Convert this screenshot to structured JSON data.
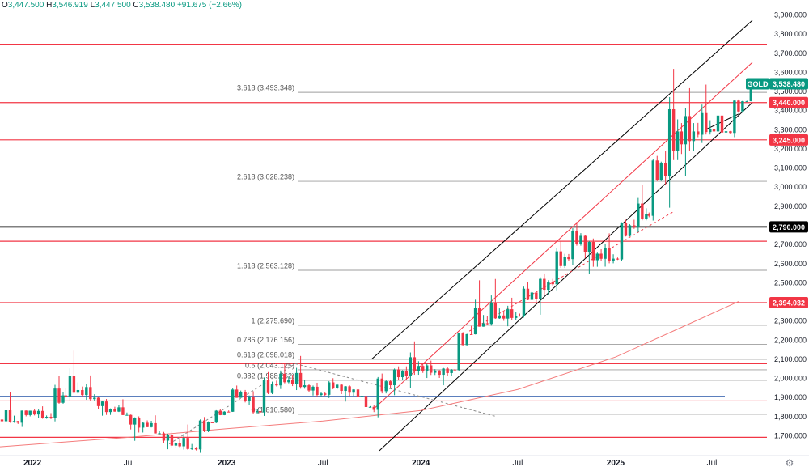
{
  "header": {
    "o_label": "O",
    "open": "3,447.500",
    "h_label": "H",
    "high": "3,546.919",
    "l_label": "L",
    "low": "3,447.500",
    "c_label": "C",
    "close": "3,538.480",
    "change": "+91.675 (+2.66%)"
  },
  "colors": {
    "up": "#089981",
    "down": "#f23645",
    "level": "#f23645",
    "fib": "#9e9e9e",
    "axis_text": "#131722",
    "black_level": "#000000",
    "blue_level": "#5b7fbd",
    "ma": "#f47c7c"
  },
  "icons": {
    "settings": "gear-icon"
  },
  "chart_data": {
    "type": "candlestick",
    "symbol": "GOLD",
    "last_price": "3,538.480",
    "ylim": [
      1650,
      3925
    ],
    "xlim": [
      "2021-11-01",
      "2025-09-15"
    ],
    "y_ticks": [
      "1,700.000",
      "1,800.000",
      "1,900.000",
      "2,000.000",
      "2,100.000",
      "2,200.000",
      "2,300.000",
      "2,400.000",
      "2,500.000",
      "2,600.000",
      "2,700.000",
      "2,800.000",
      "2,900.000",
      "3,000.000",
      "3,100.000",
      "3,200.000",
      "3,300.000",
      "3,400.000",
      "3,500.000",
      "3,600.000",
      "3,700.000",
      "3,800.000",
      "3,900.000"
    ],
    "x_ticks": [
      {
        "label": "2022",
        "date": "2022-01-01"
      },
      {
        "label": "Jul",
        "date": "2022-07-01"
      },
      {
        "label": "2023",
        "date": "2023-01-01"
      },
      {
        "label": "Jul",
        "date": "2023-07-01"
      },
      {
        "label": "2024",
        "date": "2024-01-01"
      },
      {
        "label": "Jul",
        "date": "2024-07-01"
      },
      {
        "label": "2025",
        "date": "2025-01-01"
      },
      {
        "label": "Jul",
        "date": "2025-07-01"
      }
    ],
    "horizontal_levels": [
      {
        "price": 3745,
        "color": "red"
      },
      {
        "price": 3440,
        "color": "red",
        "label": "3,440.000"
      },
      {
        "price": 3245,
        "color": "red",
        "label": "3,245.000"
      },
      {
        "price": 2790,
        "color": "black",
        "label": "2,790.000"
      },
      {
        "price": 2715,
        "color": "red"
      },
      {
        "price": 2394.032,
        "color": "red",
        "label": "2,394.032"
      },
      {
        "price": 2075,
        "color": "red"
      },
      {
        "price": 1905,
        "color": "blue"
      },
      {
        "price": 1880,
        "color": "red"
      },
      {
        "price": 1690,
        "color": "red"
      }
    ],
    "fib_levels": [
      {
        "label": "3.618 (3,493.348)",
        "price": 3493.348
      },
      {
        "label": "2.618 (3,028.238)",
        "price": 3028.238
      },
      {
        "label": "1.618 (2,563.128)",
        "price": 2563.128
      },
      {
        "label": "1 (2,275.690)",
        "price": 2275.69
      },
      {
        "label": "0.786 (2,176.156)",
        "price": 2176.156
      },
      {
        "label": "0.618 (2,098.018)",
        "price": 2098.018
      },
      {
        "label": "0.5 (2,043.125)",
        "price": 2043.125
      },
      {
        "label": "0.382 (1,988.262)",
        "price": 1988.262
      },
      {
        "label": "0 (1,810.580)",
        "price": 1810.58
      }
    ],
    "candles_monthly": [
      {
        "d": "2021-11",
        "o": 1783,
        "h": 1877,
        "l": 1760,
        "c": 1775
      },
      {
        "d": "2021-12",
        "o": 1775,
        "h": 1830,
        "l": 1753,
        "c": 1829
      },
      {
        "d": "2022-01",
        "o": 1829,
        "h": 1853,
        "l": 1780,
        "c": 1797
      },
      {
        "d": "2022-02",
        "o": 1797,
        "h": 1974,
        "l": 1780,
        "c": 1909
      },
      {
        "d": "2022-03",
        "o": 1909,
        "h": 2070,
        "l": 1890,
        "c": 1937
      },
      {
        "d": "2022-04",
        "o": 1937,
        "h": 1998,
        "l": 1872,
        "c": 1897
      },
      {
        "d": "2022-05",
        "o": 1897,
        "h": 1910,
        "l": 1787,
        "c": 1837
      },
      {
        "d": "2022-06",
        "o": 1837,
        "h": 1879,
        "l": 1805,
        "c": 1807
      },
      {
        "d": "2022-07",
        "o": 1807,
        "h": 1814,
        "l": 1681,
        "c": 1766
      },
      {
        "d": "2022-08",
        "o": 1766,
        "h": 1807,
        "l": 1709,
        "c": 1711
      },
      {
        "d": "2022-09",
        "o": 1711,
        "h": 1735,
        "l": 1615,
        "c": 1660
      },
      {
        "d": "2022-10",
        "o": 1660,
        "h": 1730,
        "l": 1617,
        "c": 1634
      },
      {
        "d": "2022-11",
        "o": 1634,
        "h": 1786,
        "l": 1616,
        "c": 1768
      },
      {
        "d": "2022-12",
        "o": 1768,
        "h": 1833,
        "l": 1765,
        "c": 1824
      },
      {
        "d": "2023-01",
        "o": 1824,
        "h": 1949,
        "l": 1823,
        "c": 1928
      },
      {
        "d": "2023-02",
        "o": 1928,
        "h": 1959,
        "l": 1805,
        "c": 1827
      },
      {
        "d": "2023-03",
        "o": 1827,
        "h": 2009,
        "l": 1809,
        "c": 1969
      },
      {
        "d": "2023-04",
        "o": 1969,
        "h": 2048,
        "l": 1950,
        "c": 1990
      },
      {
        "d": "2023-05",
        "o": 1990,
        "h": 2079,
        "l": 1932,
        "c": 1962
      },
      {
        "d": "2023-06",
        "o": 1962,
        "h": 1983,
        "l": 1893,
        "c": 1919
      },
      {
        "d": "2023-07",
        "o": 1919,
        "h": 1987,
        "l": 1902,
        "c": 1965
      },
      {
        "d": "2023-08",
        "o": 1965,
        "h": 1970,
        "l": 1884,
        "c": 1940
      },
      {
        "d": "2023-09",
        "o": 1940,
        "h": 1953,
        "l": 1846,
        "c": 1849
      },
      {
        "d": "2023-10",
        "o": 1849,
        "h": 2009,
        "l": 1810,
        "c": 1983
      },
      {
        "d": "2023-11",
        "o": 1983,
        "h": 2052,
        "l": 1931,
        "c": 2036
      },
      {
        "d": "2023-12",
        "o": 2036,
        "h": 2146,
        "l": 1973,
        "c": 2063
      },
      {
        "d": "2024-01",
        "o": 2063,
        "h": 2088,
        "l": 2001,
        "c": 2039
      },
      {
        "d": "2024-02",
        "o": 2039,
        "h": 2054,
        "l": 1984,
        "c": 2044
      },
      {
        "d": "2024-03",
        "o": 2044,
        "h": 2236,
        "l": 2039,
        "c": 2229
      },
      {
        "d": "2024-04",
        "o": 2229,
        "h": 2431,
        "l": 2228,
        "c": 2286
      },
      {
        "d": "2024-05",
        "o": 2286,
        "h": 2450,
        "l": 2277,
        "c": 2327
      },
      {
        "d": "2024-06",
        "o": 2327,
        "h": 2387,
        "l": 2286,
        "c": 2326
      },
      {
        "d": "2024-07",
        "o": 2326,
        "h": 2483,
        "l": 2319,
        "c": 2447
      },
      {
        "d": "2024-08",
        "o": 2447,
        "h": 2531,
        "l": 2364,
        "c": 2503
      },
      {
        "d": "2024-09",
        "o": 2503,
        "h": 2685,
        "l": 2471,
        "c": 2634
      },
      {
        "d": "2024-10",
        "o": 2634,
        "h": 2790,
        "l": 2603,
        "c": 2743
      },
      {
        "d": "2024-11",
        "o": 2743,
        "h": 2761,
        "l": 2536,
        "c": 2650
      },
      {
        "d": "2024-12",
        "o": 2650,
        "h": 2726,
        "l": 2583,
        "c": 2624
      },
      {
        "d": "2025-01",
        "o": 2624,
        "h": 2817,
        "l": 2614,
        "c": 2798
      },
      {
        "d": "2025-02",
        "o": 2798,
        "h": 2956,
        "l": 2772,
        "c": 2858
      },
      {
        "d": "2025-03",
        "o": 2858,
        "h": 3148,
        "l": 2833,
        "c": 3124
      },
      {
        "d": "2025-04",
        "o": 3124,
        "h": 3500,
        "l": 2957,
        "c": 3289
      },
      {
        "d": "2025-05",
        "o": 3289,
        "h": 3435,
        "l": 3121,
        "c": 3289
      },
      {
        "d": "2025-06",
        "o": 3289,
        "h": 3452,
        "l": 3246,
        "c": 3303
      },
      {
        "d": "2025-07",
        "o": 3303,
        "h": 3439,
        "l": 3268,
        "c": 3290
      },
      {
        "d": "2025-08",
        "o": 3290,
        "h": 3453,
        "l": 3268,
        "c": 3447
      },
      {
        "d": "2025-09",
        "o": 3447,
        "h": 3547,
        "l": 3447,
        "c": 3538
      }
    ]
  }
}
